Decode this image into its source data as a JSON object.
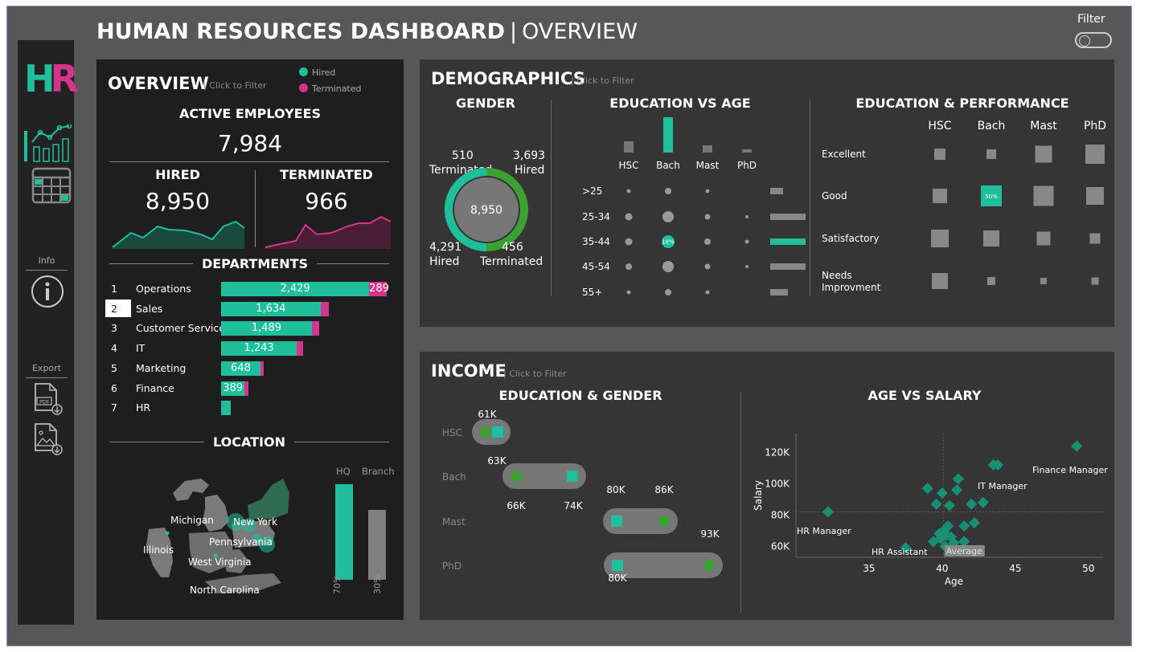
{
  "header": {
    "title": "HUMAN RESOURCES DASHBOARD",
    "separator": "|",
    "subtitle": "OVERVIEW",
    "filter_label": "Filter"
  },
  "logo": {
    "h": "H",
    "r": "R"
  },
  "sidebar": {
    "info_label": "Info",
    "export_label": "Export"
  },
  "colors": {
    "hired": "#1ebf9a",
    "terminated": "#d6338f",
    "accent_green": "#3aa132",
    "grey": "#777777"
  },
  "overview": {
    "title": "OVERVIEW",
    "click_hint": "| Click to Filter",
    "legend": {
      "hired": "Hired",
      "terminated": "Terminated"
    },
    "active_label": "ACTIVE EMPLOYEES",
    "active_value": "7,984",
    "hired_label": "HIRED",
    "hired_value": "8,950",
    "terminated_label": "TERMINATED",
    "terminated_value": "966",
    "departments_title": "DEPARTMENTS",
    "departments": [
      {
        "rank": "1",
        "name": "Operations",
        "hired": 2429,
        "hired_label": "2,429",
        "terminated": 289,
        "terminated_label": "289"
      },
      {
        "rank": "2",
        "name": "Sales",
        "hired": 1634,
        "hired_label": "1,634",
        "terminated": 130,
        "terminated_label": ""
      },
      {
        "rank": "3",
        "name": "Customer Service",
        "hired": 1489,
        "hired_label": "1,489",
        "terminated": 120,
        "terminated_label": ""
      },
      {
        "rank": "4",
        "name": "IT",
        "hired": 1243,
        "hired_label": "1,243",
        "terminated": 100,
        "terminated_label": ""
      },
      {
        "rank": "5",
        "name": "Marketing",
        "hired": 648,
        "hired_label": "648",
        "terminated": 50,
        "terminated_label": ""
      },
      {
        "rank": "6",
        "name": "Finance",
        "hired": 389,
        "hired_label": "389",
        "terminated": 60,
        "terminated_label": ""
      },
      {
        "rank": "7",
        "name": "HR",
        "hired": 160,
        "hired_label": "",
        "terminated": 0,
        "terminated_label": ""
      }
    ],
    "location_title": "LOCATION",
    "location_states": [
      "Michigan",
      "New York",
      "Illinois",
      "Pennsylvania",
      "West Virginia",
      "North Carolina"
    ],
    "location_bars": {
      "hq_label": "HQ",
      "branch_label": "Branch",
      "hq_pct": "70%",
      "branch_pct": "30%",
      "hq_value": 70,
      "branch_value": 30
    }
  },
  "demographics": {
    "title": "DEMOGRAPHICS",
    "click_hint": "| Click to Filter",
    "gender": {
      "title": "GENDER",
      "center_value": "8,950",
      "top_left": {
        "num": "510",
        "lbl": "Terminated"
      },
      "top_right": {
        "num": "3,693",
        "lbl": "Hired"
      },
      "bottom_left": {
        "num": "4,291",
        "lbl": "Hired"
      },
      "bottom_right": {
        "num": "456",
        "lbl": "Terminated"
      }
    },
    "education_age": {
      "title": "EDUCATION VS AGE",
      "edu_levels": [
        "HSC",
        "Bach",
        "Mast",
        "PhD"
      ],
      "age_groups": [
        ">25",
        "25-34",
        "35-44",
        "45-54",
        "55+"
      ],
      "highlight_label": "18%"
    },
    "education_performance": {
      "title": "EDUCATION & PERFORMANCE",
      "columns": [
        "HSC",
        "Bach",
        "Mast",
        "PhD"
      ],
      "rows": [
        "Excellent",
        "Good",
        "Satisfactory",
        "Needs Improvment"
      ],
      "highlight_label": "50%"
    }
  },
  "income": {
    "title": "INCOME",
    "click_hint": "| Click to Filter",
    "education_gender": {
      "title": "EDUCATION & GENDER",
      "levels": [
        "HSC",
        "Bach",
        "Mast",
        "PhD"
      ],
      "labels": {
        "hsc": "61K",
        "bach_top": "63K",
        "bach_l": "66K",
        "bach_r": "74K",
        "mast_l": "80K",
        "mast_r": "86K",
        "phd_r": "93K",
        "phd_l": "80K"
      }
    },
    "age_salary": {
      "title": "AGE VS SALARY",
      "x_label": "Age",
      "y_label": "Salary",
      "x_ticks": [
        "35",
        "40",
        "45",
        "50"
      ],
      "y_ticks": [
        "120K",
        "100K",
        "80K",
        "60K"
      ],
      "annotations": [
        "Finance Manager",
        "IT Manager",
        "HR Manager",
        "HR Assistant"
      ],
      "average_label": "Average"
    }
  },
  "chart_data": {
    "type": "scatter",
    "title": "AGE VS SALARY",
    "xlabel": "Age",
    "ylabel": "Salary",
    "xlim": [
      30,
      51
    ],
    "ylim": [
      53000,
      132000
    ],
    "x": [
      32.2,
      37.5,
      39,
      39.4,
      39.6,
      39.8,
      39.9,
      40.0,
      40.1,
      40.2,
      40.3,
      40.4,
      40.5,
      40.6,
      40.8,
      41.0,
      41.1,
      41.5,
      41.5,
      42.0,
      42.2,
      42.8,
      43.5,
      43.8,
      49.2
    ],
    "y": [
      82000,
      59000,
      97000,
      63000,
      87000,
      68000,
      65000,
      94000,
      70000,
      60000,
      67000,
      73000,
      86000,
      66000,
      62000,
      96000,
      103000,
      63000,
      73000,
      87000,
      75000,
      88000,
      112000,
      112000,
      124000
    ]
  }
}
